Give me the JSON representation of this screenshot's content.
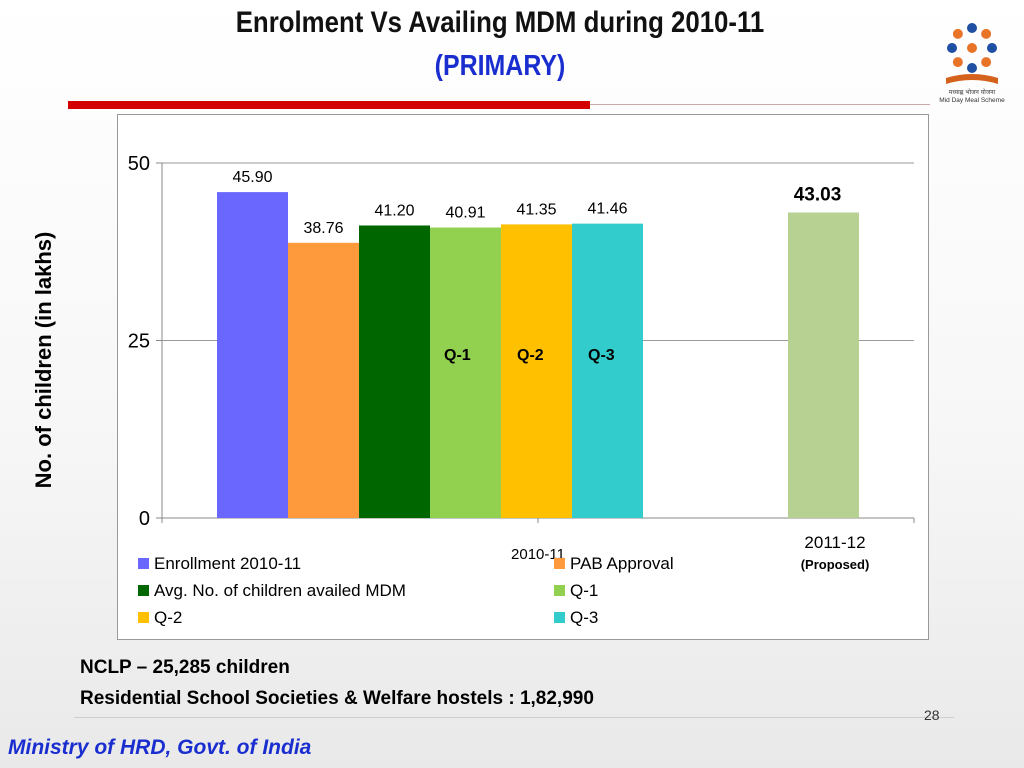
{
  "slide": {
    "title_line1": "Enrolment Vs Availing MDM during  2010-11",
    "title_line2": "(PRIMARY)",
    "logo_text": "मध्याह्न भोजन योजना",
    "logo_subtext": "Mid Day Meal Scheme",
    "nclp": "NCLP – 25,285 children",
    "residential": "Residential School Societies & Welfare hostels : 1,82,990",
    "page_number": "28",
    "footer": "Ministry of HRD, Govt. of India",
    "colors": {
      "title_blue": "#1a2ed0",
      "accent_red": "#d40000"
    }
  },
  "chart_data": {
    "type": "bar",
    "ylabel": "No. of children (in lakhs)",
    "ylim": [
      0,
      50
    ],
    "yticks": [
      "0",
      "25",
      "50"
    ],
    "grid": true,
    "legend_position": "bottom",
    "groups": [
      {
        "label": "2010-11",
        "sublabel": ""
      },
      {
        "label": "2011-12",
        "sublabel": "(Proposed)"
      }
    ],
    "series": [
      {
        "name": "Enrollment 2010-11",
        "group": 0,
        "value": 45.9,
        "label": "45.90",
        "color": "#6a67ff"
      },
      {
        "name": "PAB Approval",
        "group": 0,
        "value": 38.76,
        "label": "38.76",
        "color": "#ff9a3c"
      },
      {
        "name": "Avg. No. of children  availed MDM",
        "group": 0,
        "value": 41.2,
        "label": "41.20",
        "color": "#006600"
      },
      {
        "name": "Q-1",
        "group": 0,
        "value": 40.91,
        "label": "40.91",
        "color": "#92d050"
      },
      {
        "name": "Q-2",
        "group": 0,
        "value": 41.35,
        "label": "41.35",
        "color": "#ffc000"
      },
      {
        "name": "Q-3",
        "group": 0,
        "value": 41.46,
        "label": "41.46",
        "color": "#33cccc"
      },
      {
        "name": "",
        "group": 1,
        "value": 43.03,
        "label": "43.03",
        "color": "#b7d192"
      }
    ],
    "annotations": [
      "Q-1",
      "Q-2",
      "Q-3"
    ]
  }
}
